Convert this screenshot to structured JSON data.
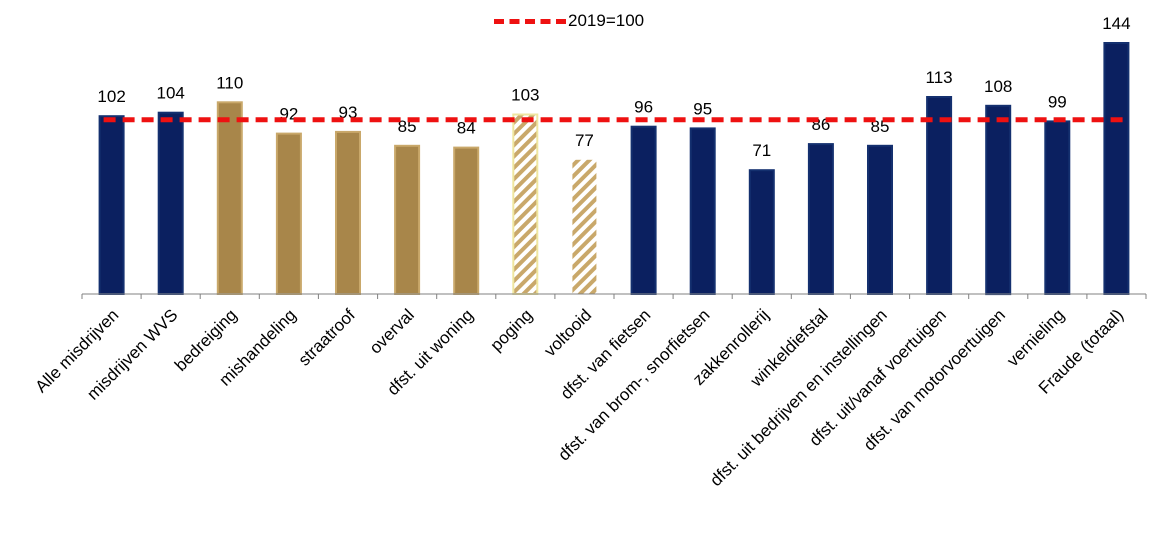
{
  "chart_data": {
    "type": "bar",
    "title": "",
    "xlabel": "",
    "ylabel": "",
    "ylim": [
      0,
      150
    ],
    "categories": [
      "Alle misdrijven",
      "misdrijven WVS",
      "bedreiging",
      "mishandeling",
      "straatroof",
      "overval",
      "dfst. uit woning",
      "poging",
      "voltooid",
      "dfst. van fietsen",
      "dfst. van brom-, snorfietsen",
      "zakkenrollerij",
      "winkeldiefstal",
      "dfst. uit bedrijven en instellingen",
      "dfst. uit/vanaf voertuigen",
      "dfst. van motorvoertuigen",
      "vernieling",
      "Fraude (totaal)"
    ],
    "values": [
      102,
      104,
      110,
      92,
      93,
      85,
      84,
      103,
      77,
      96,
      95,
      71,
      86,
      85,
      113,
      108,
      99,
      144
    ],
    "bar_styles": [
      "navy",
      "navy",
      "gold",
      "gold",
      "gold",
      "gold",
      "gold",
      "hatch-light",
      "hatch",
      "navy",
      "navy",
      "navy",
      "navy",
      "navy",
      "navy",
      "navy",
      "navy",
      "navy"
    ],
    "reference_line": {
      "value": 100,
      "label": "2019=100"
    },
    "legend": {
      "position": "top-center",
      "entries": [
        "2019=100"
      ]
    },
    "grid": false,
    "colors": {
      "navy": "#0b2060",
      "gold": "#a8864a",
      "hatch": "#c9a86a",
      "hatch_light": "#efe6a0",
      "reference": "#ee1111"
    }
  }
}
